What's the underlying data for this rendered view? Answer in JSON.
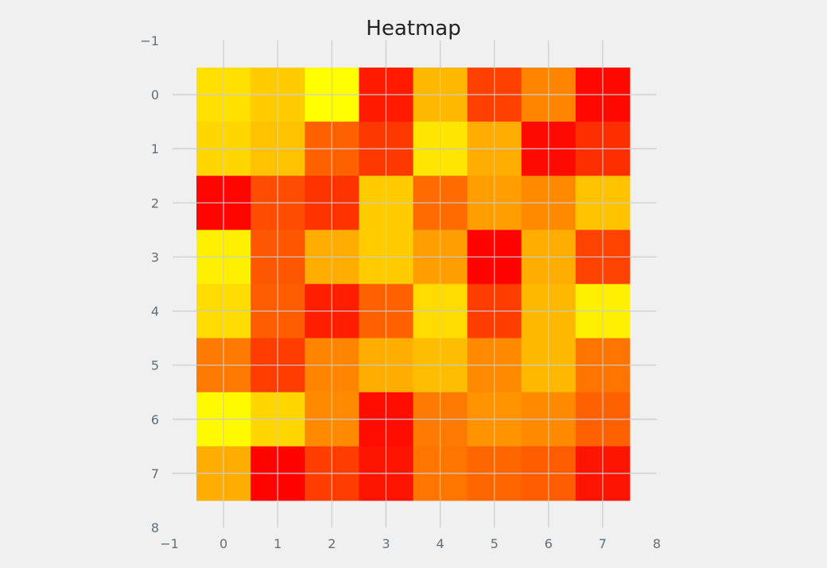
{
  "chart_data": {
    "type": "heatmap",
    "title": "Heatmap",
    "xlabel": "",
    "ylabel": "",
    "xlim": [
      -1,
      8
    ],
    "ylim": [
      8,
      -1
    ],
    "x_ticks": [
      "−1",
      "0",
      "1",
      "2",
      "3",
      "4",
      "5",
      "6",
      "7",
      "8"
    ],
    "y_ticks": [
      "−1",
      "0",
      "1",
      "2",
      "3",
      "4",
      "5",
      "6",
      "7",
      "8"
    ],
    "grid": true,
    "colormap": "autumn",
    "colormap_endpoints": [
      "#ff0000",
      "#ffff00"
    ],
    "values": [
      [
        0.88,
        0.8,
        1.0,
        0.1,
        0.72,
        0.25,
        0.52,
        0.03
      ],
      [
        0.84,
        0.76,
        0.38,
        0.22,
        0.9,
        0.68,
        0.04,
        0.18
      ],
      [
        0.02,
        0.3,
        0.2,
        0.8,
        0.42,
        0.62,
        0.54,
        0.76
      ],
      [
        0.94,
        0.34,
        0.68,
        0.8,
        0.62,
        0.01,
        0.68,
        0.26
      ],
      [
        0.86,
        0.36,
        0.12,
        0.38,
        0.86,
        0.24,
        0.72,
        0.94
      ],
      [
        0.48,
        0.24,
        0.52,
        0.68,
        0.74,
        0.54,
        0.72,
        0.46
      ],
      [
        0.98,
        0.84,
        0.54,
        0.05,
        0.48,
        0.58,
        0.54,
        0.38
      ],
      [
        0.68,
        0.01,
        0.24,
        0.08,
        0.46,
        0.4,
        0.36,
        0.08
      ]
    ]
  }
}
